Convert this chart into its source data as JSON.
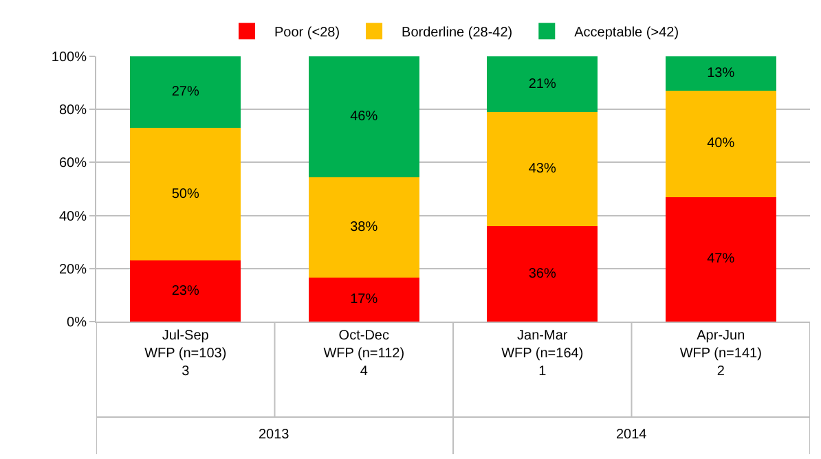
{
  "chart_data": {
    "type": "bar",
    "stacked": true,
    "categories": [
      "Jul-Sep\nWFP (n=103)\n3",
      "Oct-Dec\nWFP (n=112)\n4",
      "Jan-Mar\nWFP (n=164)\n1",
      "Apr-Jun\nWFP (n=141)\n2"
    ],
    "series": [
      {
        "name": "Poor (<28)",
        "color": "#ff0000",
        "values": [
          23,
          16.6,
          36,
          47
        ],
        "value_labels": [
          "23%",
          "17%",
          "36%",
          "47%"
        ]
      },
      {
        "name": "Borderline (28-42)",
        "color": "#ffc000",
        "values": [
          50,
          37.8,
          43,
          40
        ],
        "value_labels": [
          "50%",
          "38%",
          "43%",
          "40%"
        ]
      },
      {
        "name": "Acceptable (>42)",
        "color": "#00b050",
        "values": [
          27,
          45.6,
          21,
          13
        ],
        "value_labels": [
          "27%",
          "46%",
          "21%",
          "13%"
        ]
      }
    ],
    "ylim": [
      0,
      100
    ],
    "yticks": [
      {
        "value": 0,
        "label": "0%"
      },
      {
        "value": 20,
        "label": "20%"
      },
      {
        "value": 40,
        "label": "40%"
      },
      {
        "value": 60,
        "label": "60%"
      },
      {
        "value": 80,
        "label": "80%"
      },
      {
        "value": 100,
        "label": "100%"
      }
    ],
    "grid": "y",
    "legend": "top",
    "annotations": [
      "2013",
      "2014"
    ]
  }
}
